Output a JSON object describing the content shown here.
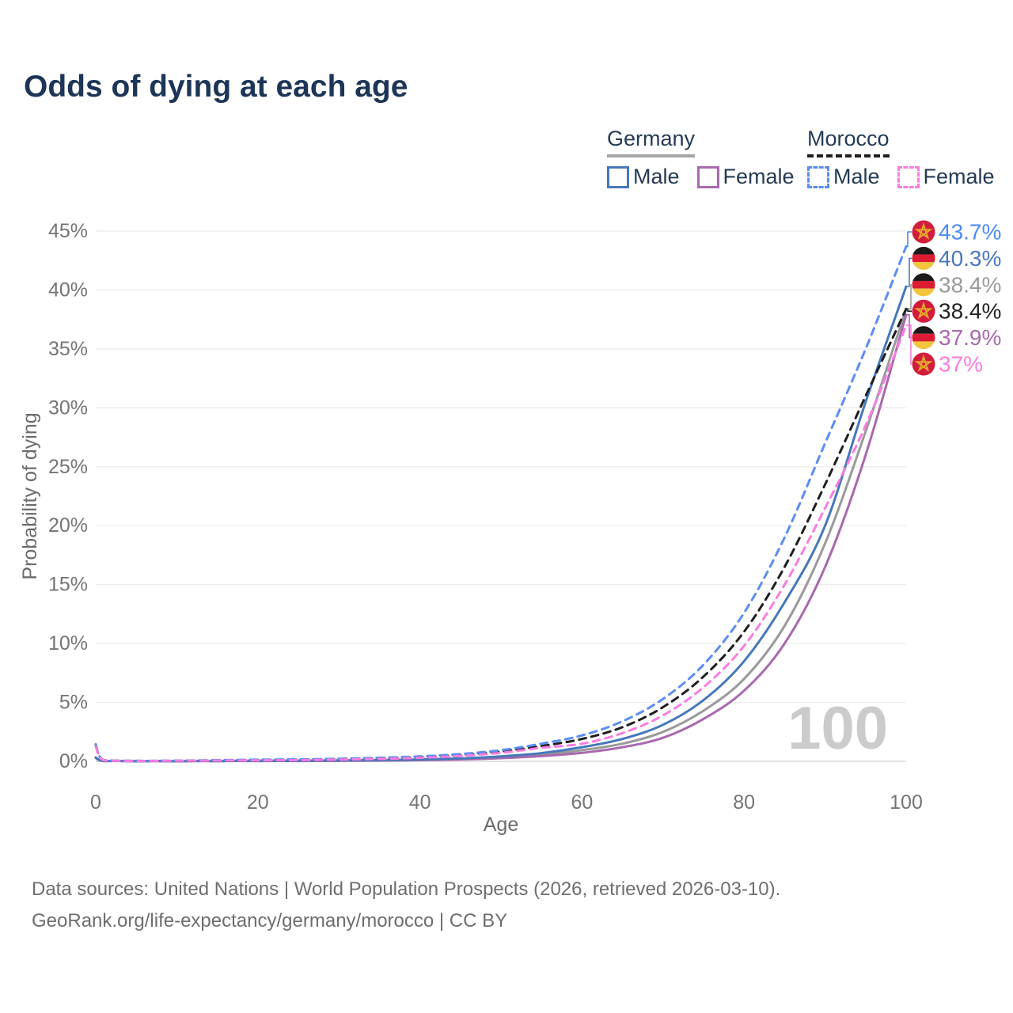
{
  "title": "Odds of dying at each age",
  "legend": {
    "germany": {
      "label": "Germany",
      "underline_color": "#a6a6a6",
      "underline_style": "solid",
      "male_label": "Male",
      "female_label": "Female"
    },
    "morocco": {
      "label": "Morocco",
      "underline_color": "#1f1f1f",
      "underline_style": "dashed",
      "male_label": "Male",
      "female_label": "Female"
    }
  },
  "watermark": {
    "text": "100",
    "color": "#cbcbcb"
  },
  "colors": {
    "title": "#1d3557",
    "legend_text": "#243b55",
    "tick": "#757575",
    "axis_label": "#6b6b6b",
    "grid": "#ededed",
    "baseline": "#d9d9d9",
    "footer": "#6e6e6e"
  },
  "flags": {
    "germany": {
      "black": "#1a1a1a",
      "red": "#dd1c34",
      "gold": "#f3c53e"
    },
    "morocco": {
      "red": "#d21c3c",
      "star": "#e6a72e"
    }
  },
  "end_labels": [
    {
      "series": "morocco-male",
      "text": "43.7%",
      "color": "#4b8bf5",
      "flag": "morocco"
    },
    {
      "series": "germany-male",
      "text": "40.3%",
      "color": "#4a78bc",
      "flag": "germany"
    },
    {
      "series": "germany-both",
      "text": "38.4%",
      "color": "#9a9a9a",
      "flag": "germany"
    },
    {
      "series": "morocco-both",
      "text": "38.4%",
      "color": "#222222",
      "flag": "morocco"
    },
    {
      "series": "germany-female",
      "text": "37.9%",
      "color": "#a76aaf",
      "flag": "germany"
    },
    {
      "series": "morocco-female",
      "text": "37%",
      "color": "#fb7ce0",
      "flag": "morocco"
    }
  ],
  "chart_data": {
    "type": "line",
    "title": "Odds of dying at each age",
    "xlabel": "Age",
    "ylabel": "Probability of dying",
    "xlim": [
      0,
      100
    ],
    "ylim": [
      0,
      45
    ],
    "grid": true,
    "legend_position": "top-right",
    "x_tick_values": [
      0,
      20,
      40,
      60,
      80,
      100
    ],
    "x_tick_labels": [
      "0",
      "20",
      "40",
      "60",
      "80",
      "100"
    ],
    "y_tick_values": [
      0,
      5,
      10,
      15,
      20,
      25,
      30,
      35,
      40,
      45
    ],
    "y_tick_labels": [
      "0%",
      "5%",
      "10%",
      "15%",
      "20%",
      "25%",
      "30%",
      "35%",
      "40%",
      "45%"
    ],
    "x": [
      0,
      1,
      5,
      10,
      15,
      20,
      25,
      30,
      35,
      40,
      45,
      50,
      55,
      60,
      65,
      70,
      75,
      80,
      85,
      90,
      95,
      100
    ],
    "series": [
      {
        "key": "germany-both",
        "name": "Germany Both sexes",
        "country": "Germany",
        "sex": "both",
        "color": "#9a9a9a",
        "line_style": "solid",
        "end_value_label": "38.4%",
        "values": [
          0.3,
          0.03,
          0.01,
          0.01,
          0.02,
          0.04,
          0.05,
          0.06,
          0.09,
          0.13,
          0.21,
          0.35,
          0.57,
          0.95,
          1.5,
          2.5,
          4.3,
          7.0,
          11.5,
          18.5,
          28.0,
          38.4
        ]
      },
      {
        "key": "germany-female",
        "name": "Germany Female",
        "country": "Germany",
        "sex": "female",
        "color": "#a869ae",
        "line_style": "solid",
        "end_value_label": "37.9%",
        "values": [
          0.28,
          0.02,
          0.01,
          0.01,
          0.02,
          0.02,
          0.03,
          0.04,
          0.06,
          0.1,
          0.16,
          0.27,
          0.44,
          0.72,
          1.2,
          2.0,
          3.6,
          6.0,
          10.0,
          16.5,
          26.0,
          37.9
        ]
      },
      {
        "key": "germany-male",
        "name": "Germany Male",
        "country": "Germany",
        "sex": "male",
        "color": "#4678ba",
        "line_style": "solid",
        "end_value_label": "40.3%",
        "values": [
          0.33,
          0.03,
          0.01,
          0.01,
          0.03,
          0.05,
          0.06,
          0.08,
          0.11,
          0.16,
          0.25,
          0.42,
          0.7,
          1.2,
          1.9,
          3.1,
          5.2,
          8.5,
          13.5,
          20.0,
          30.5,
          40.3
        ]
      },
      {
        "key": "morocco-both",
        "name": "Morocco Both sexes",
        "country": "Morocco",
        "sex": "both",
        "color": "#1f1f1f",
        "line_style": "dashed",
        "end_value_label": "38.4%",
        "values": [
          1.35,
          0.1,
          0.04,
          0.05,
          0.08,
          0.12,
          0.14,
          0.19,
          0.26,
          0.36,
          0.54,
          0.84,
          1.3,
          1.9,
          2.9,
          4.6,
          7.2,
          11.0,
          16.5,
          23.5,
          31.0,
          38.4
        ]
      },
      {
        "key": "morocco-male",
        "name": "Morocco Male",
        "country": "Morocco",
        "sex": "male",
        "color": "#5b8df2",
        "line_style": "dashed",
        "end_value_label": "43.7%",
        "values": [
          1.45,
          0.1,
          0.04,
          0.06,
          0.1,
          0.14,
          0.17,
          0.22,
          0.3,
          0.42,
          0.62,
          0.95,
          1.5,
          2.2,
          3.4,
          5.3,
          8.2,
          12.6,
          19.0,
          27.0,
          35.0,
          43.7
        ]
      },
      {
        "key": "morocco-female",
        "name": "Morocco Female",
        "country": "Morocco",
        "sex": "female",
        "color": "#fb7ce0",
        "line_style": "dashed",
        "end_value_label": "37%",
        "values": [
          1.25,
          0.09,
          0.03,
          0.05,
          0.07,
          0.09,
          0.11,
          0.15,
          0.21,
          0.3,
          0.46,
          0.72,
          1.15,
          1.5,
          2.4,
          3.9,
          6.3,
          9.8,
          15.0,
          21.5,
          28.5,
          37.0
        ]
      }
    ]
  },
  "footer": {
    "line1": "Data sources: United Nations | World Population Prospects (2026, retrieved 2026-03-10).",
    "line2": "GeoRank.org/life-expectancy/germany/morocco | CC BY"
  }
}
